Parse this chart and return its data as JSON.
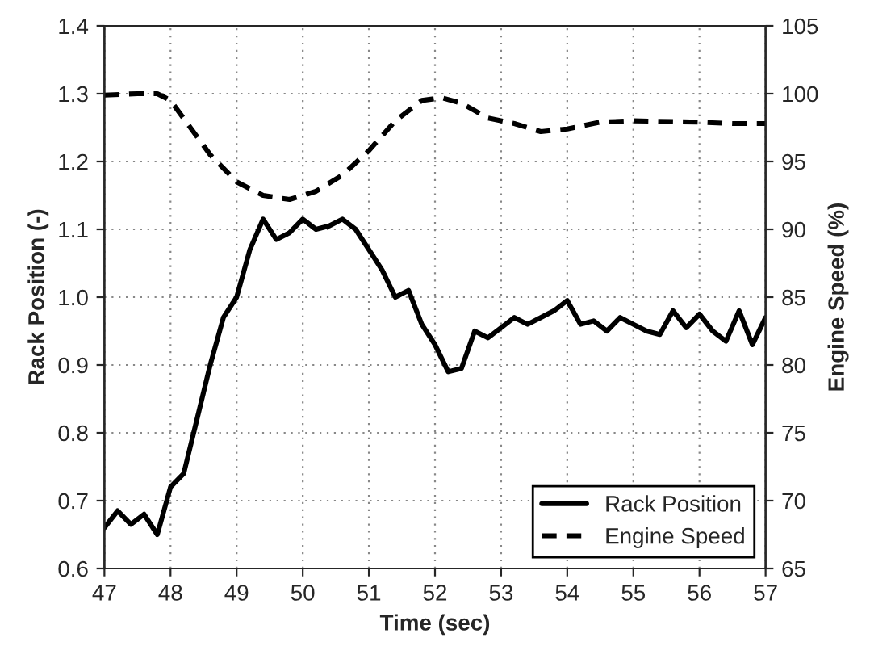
{
  "chart_data": {
    "type": "line",
    "xlabel": "Time (sec)",
    "ylabel": "Rack Position (-)",
    "y2label": "Engine Speed (%)",
    "xlim": [
      47,
      57
    ],
    "xticks": [
      47,
      48,
      49,
      50,
      51,
      52,
      53,
      54,
      55,
      56,
      57
    ],
    "ylim": [
      0.6,
      1.4
    ],
    "yticks": [
      {
        "value": 0.6,
        "label": "0.6"
      },
      {
        "value": 0.7,
        "label": "0.7"
      },
      {
        "value": 0.8,
        "label": "0.8"
      },
      {
        "value": 0.9,
        "label": "0.9"
      },
      {
        "value": 1.0,
        "label": "1.0"
      },
      {
        "value": 1.1,
        "label": "1.1"
      },
      {
        "value": 1.2,
        "label": "1.2"
      },
      {
        "value": 1.3,
        "label": "1.3"
      },
      {
        "value": 1.4,
        "label": "1.4"
      }
    ],
    "y2lim": [
      65,
      105
    ],
    "y2ticks": [
      65,
      70,
      75,
      80,
      85,
      90,
      95,
      100,
      105
    ],
    "grid": true,
    "legend": "bottom right",
    "series": [
      {
        "name": "Rack Position",
        "color": "#000000",
        "line_style": "solid",
        "x": [
          47.0,
          47.2,
          47.4,
          47.6,
          47.8,
          48.0,
          48.2,
          48.4,
          48.6,
          48.8,
          49.0,
          49.2,
          49.4,
          49.6,
          49.8,
          50.0,
          50.2,
          50.4,
          50.6,
          50.8,
          51.0,
          51.2,
          51.4,
          51.6,
          51.8,
          52.0,
          52.2,
          52.4,
          52.6,
          52.8,
          53.0,
          53.2,
          53.4,
          53.6,
          53.8,
          54.0,
          54.2,
          54.4,
          54.6,
          54.8,
          55.0,
          55.2,
          55.4,
          55.6,
          55.8,
          56.0,
          56.2,
          56.4,
          56.6,
          56.8,
          57.0
        ],
        "values": [
          0.66,
          0.685,
          0.665,
          0.68,
          0.65,
          0.72,
          0.74,
          0.82,
          0.9,
          0.97,
          1.0,
          1.07,
          1.115,
          1.085,
          1.095,
          1.115,
          1.1,
          1.105,
          1.115,
          1.1,
          1.07,
          1.04,
          1.0,
          1.01,
          0.96,
          0.93,
          0.89,
          0.895,
          0.95,
          0.94,
          0.955,
          0.97,
          0.96,
          0.97,
          0.98,
          0.995,
          0.96,
          0.965,
          0.95,
          0.97,
          0.96,
          0.95,
          0.945,
          0.98,
          0.955,
          0.975,
          0.95,
          0.935,
          0.98,
          0.93,
          0.97
        ]
      },
      {
        "name": "Engine Speed",
        "color": "#000000",
        "line_style": "dashed",
        "axis": "y2",
        "x": [
          47.0,
          47.5,
          47.8,
          48.0,
          48.3,
          48.6,
          49.0,
          49.4,
          49.8,
          50.2,
          50.6,
          51.0,
          51.4,
          51.8,
          52.1,
          52.4,
          52.8,
          53.2,
          53.6,
          54.0,
          54.5,
          55.0,
          56.0,
          56.5,
          57.0
        ],
        "values": [
          99.9,
          100,
          100,
          99.5,
          97.5,
          95.5,
          93.5,
          92.5,
          92.2,
          92.8,
          94,
          95.8,
          98,
          99.5,
          99.7,
          99.3,
          98.2,
          97.8,
          97.2,
          97.4,
          97.9,
          98,
          97.9,
          97.8,
          97.8
        ]
      }
    ]
  }
}
